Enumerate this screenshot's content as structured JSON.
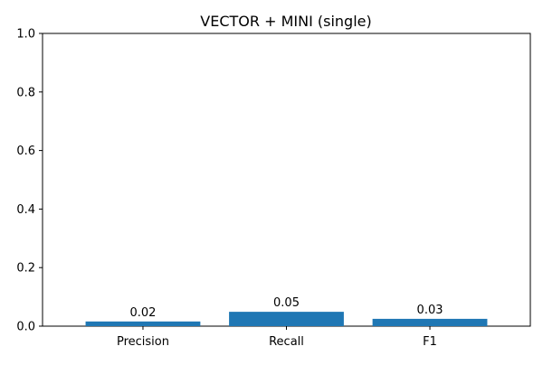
{
  "chart_data": {
    "type": "bar",
    "title": "VECTOR + MINI (single)",
    "xlabel": "",
    "ylabel": "",
    "categories": [
      "Precision",
      "Recall",
      "F1"
    ],
    "values": [
      0.016,
      0.049,
      0.025
    ],
    "value_labels": [
      "0.02",
      "0.05",
      "0.03"
    ],
    "ylim": [
      0,
      1
    ],
    "yticks": [
      0,
      0.2,
      0.4,
      0.6,
      0.8,
      1.0
    ],
    "ytick_labels": [
      "0.0",
      "0.2",
      "0.4",
      "0.6",
      "0.8",
      "1.0"
    ],
    "grid": false,
    "legend": "none",
    "bar_color": "#1f77b4"
  }
}
